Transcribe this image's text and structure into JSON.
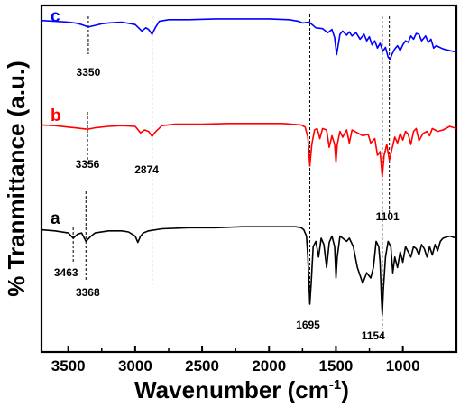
{
  "chart_data": {
    "type": "line",
    "title": "",
    "xlabel": "Wavenumber (cm",
    "xlabel_sup": "-1",
    "xlabel_close": ")",
    "ylabel": "% Tranmittance (a.u.)",
    "xlim": [
      3700,
      600
    ],
    "x_reversed": true,
    "y_ticks_shown": false,
    "grid": false,
    "x_ticks": [
      3500,
      3000,
      2500,
      2000,
      1500,
      1000
    ],
    "x_tick_labels": [
      "3500",
      "3000",
      "2500",
      "2000",
      "1500",
      "1000"
    ],
    "series": [
      {
        "name": "c",
        "color": "#0000ff",
        "x": [
          3700,
          3600,
          3500,
          3450,
          3400,
          3350,
          3300,
          3250,
          3200,
          3100,
          3000,
          2950,
          2920,
          2900,
          2874,
          2850,
          2820,
          2750,
          2600,
          2400,
          2200,
          2000,
          1850,
          1780,
          1750,
          1700,
          1650,
          1600,
          1560,
          1530,
          1510,
          1495,
          1470,
          1450,
          1420,
          1400,
          1380,
          1350,
          1320,
          1290,
          1270,
          1250,
          1230,
          1210,
          1190,
          1170,
          1150,
          1130,
          1110,
          1095,
          1080,
          1060,
          1040,
          1020,
          1000,
          980,
          960,
          940,
          920,
          900,
          880,
          860,
          830,
          810,
          790,
          770,
          750,
          700,
          650,
          600
        ],
        "y": [
          97,
          96,
          95,
          94,
          92,
          89,
          91,
          93,
          94,
          95,
          92,
          84,
          88,
          86,
          80,
          88,
          96,
          98,
          98,
          99,
          99,
          99,
          98,
          96,
          94,
          95,
          88,
          87,
          82,
          86,
          76,
          55,
          80,
          84,
          79,
          83,
          78,
          82,
          74,
          80,
          72,
          77,
          67,
          72,
          63,
          69,
          59,
          64,
          52,
          49,
          56,
          62,
          66,
          60,
          67,
          72,
          70,
          78,
          74,
          81,
          80,
          72,
          78,
          70,
          74,
          63,
          66,
          62,
          60,
          58
        ]
      },
      {
        "name": "b",
        "color": "#ff0000",
        "x": [
          3700,
          3600,
          3500,
          3450,
          3400,
          3356,
          3300,
          3200,
          3100,
          3000,
          2960,
          2930,
          2900,
          2874,
          2850,
          2800,
          2700,
          2500,
          2300,
          2100,
          1900,
          1760,
          1730,
          1710,
          1695,
          1680,
          1660,
          1640,
          1620,
          1600,
          1570,
          1550,
          1530,
          1510,
          1500,
          1490,
          1470,
          1450,
          1420,
          1400,
          1380,
          1340,
          1300,
          1260,
          1240,
          1210,
          1190,
          1170,
          1154,
          1140,
          1120,
          1101,
          1080,
          1060,
          1040,
          1020,
          1000,
          980,
          960,
          940,
          920,
          900,
          880,
          850,
          820,
          800,
          780,
          760,
          740,
          700,
          650,
          600
        ],
        "y": [
          97,
          96,
          94,
          93,
          92,
          91,
          93,
          95,
          96,
          95,
          86,
          90,
          88,
          81,
          87,
          96,
          98,
          98,
          99,
          99,
          99,
          97,
          94,
          80,
          40,
          70,
          90,
          92,
          78,
          92,
          90,
          66,
          82,
          70,
          45,
          70,
          88,
          80,
          90,
          72,
          90,
          86,
          82,
          84,
          72,
          78,
          55,
          60,
          25,
          55,
          70,
          48,
          65,
          80,
          72,
          85,
          76,
          88,
          84,
          70,
          88,
          92,
          75,
          85,
          88,
          82,
          92,
          90,
          88,
          90,
          95,
          92
        ]
      },
      {
        "name": "a",
        "color": "#000000",
        "x": [
          3700,
          3600,
          3500,
          3463,
          3430,
          3400,
          3368,
          3330,
          3300,
          3200,
          3100,
          3050,
          3000,
          2980,
          2960,
          2940,
          2900,
          2800,
          2600,
          2400,
          2200,
          2000,
          1800,
          1760,
          1740,
          1720,
          1710,
          1700,
          1695,
          1685,
          1670,
          1650,
          1630,
          1610,
          1590,
          1570,
          1550,
          1530,
          1510,
          1500,
          1490,
          1470,
          1450,
          1420,
          1400,
          1370,
          1340,
          1300,
          1270,
          1240,
          1220,
          1200,
          1180,
          1170,
          1160,
          1154,
          1145,
          1130,
          1110,
          1090,
          1075,
          1060,
          1040,
          1020,
          1000,
          980,
          960,
          940,
          920,
          900,
          880,
          860,
          840,
          820,
          800,
          780,
          760,
          740,
          720,
          700,
          650,
          600
        ],
        "y": [
          96,
          95,
          93,
          88,
          92,
          93,
          85,
          90,
          93,
          95,
          95,
          94,
          90,
          84,
          90,
          93,
          95,
          97,
          98,
          98,
          99,
          99,
          99,
          98,
          96,
          90,
          70,
          40,
          25,
          45,
          80,
          85,
          70,
          88,
          82,
          60,
          84,
          90,
          80,
          50,
          70,
          90,
          88,
          85,
          88,
          80,
          60,
          45,
          55,
          50,
          60,
          85,
          80,
          65,
          30,
          15,
          40,
          70,
          85,
          80,
          55,
          70,
          60,
          75,
          65,
          80,
          75,
          70,
          80,
          78,
          72,
          82,
          78,
          70,
          80,
          72,
          82,
          76,
          85,
          88,
          90,
          88
        ]
      }
    ],
    "annotations": [
      {
        "label": "3350",
        "x": 3350,
        "series": "c"
      },
      {
        "label": "3356",
        "x": 3356,
        "series": "b"
      },
      {
        "label": "2874",
        "x": 2874,
        "series": "b"
      },
      {
        "label": "1101",
        "x": 1101,
        "series": "a"
      },
      {
        "label": "3463",
        "x": 3463,
        "series": "a"
      },
      {
        "label": "3368",
        "x": 3368,
        "series": "a"
      },
      {
        "label": "1695",
        "x": 1695,
        "series": "a"
      },
      {
        "label": "1154",
        "x": 1154,
        "series": "a"
      }
    ],
    "reference_lines_x": [
      3463,
      3368,
      3350,
      3356,
      2874,
      1695,
      1154,
      1101
    ]
  }
}
